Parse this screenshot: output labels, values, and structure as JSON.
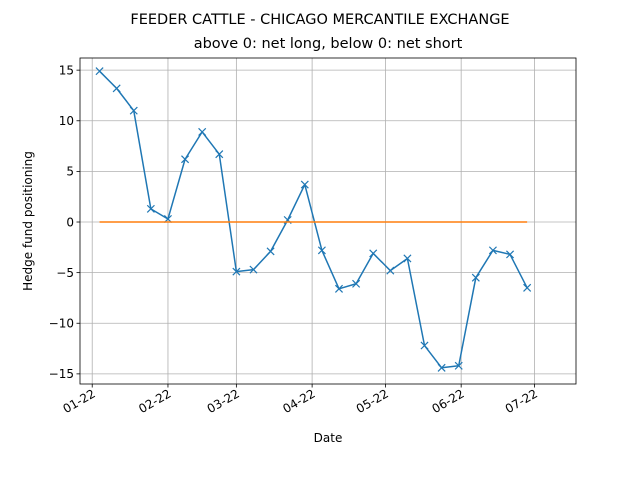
{
  "chart_data": {
    "type": "line",
    "suptitle": "FEEDER CATTLE - CHICAGO MERCANTILE EXCHANGE",
    "title": "above 0: net long, below 0: net short",
    "xlabel": "Date",
    "ylabel": "Hedge fund positioning",
    "ylim": [
      -16,
      16.2
    ],
    "xlim": [
      "2021-12-27",
      "2022-07-18"
    ],
    "yticks": [
      -15,
      -10,
      -5,
      0,
      5,
      10,
      15
    ],
    "xticks": [
      {
        "date": "2022-01-01",
        "label": "01-22"
      },
      {
        "date": "2022-02-01",
        "label": "02-22"
      },
      {
        "date": "2022-03-01",
        "label": "03-22"
      },
      {
        "date": "2022-04-01",
        "label": "04-22"
      },
      {
        "date": "2022-05-01",
        "label": "05-22"
      },
      {
        "date": "2022-06-01",
        "label": "06-22"
      },
      {
        "date": "2022-07-01",
        "label": "07-22"
      }
    ],
    "grid": true,
    "series": [
      {
        "color": "#1f77b4",
        "marker": "x",
        "x": [
          "2022-01-04",
          "2022-01-11",
          "2022-01-18",
          "2022-01-25",
          "2022-02-01",
          "2022-02-08",
          "2022-02-15",
          "2022-02-22",
          "2022-03-01",
          "2022-03-08",
          "2022-03-15",
          "2022-03-22",
          "2022-03-29",
          "2022-04-05",
          "2022-04-12",
          "2022-04-19",
          "2022-04-26",
          "2022-05-03",
          "2022-05-10",
          "2022-05-17",
          "2022-05-24",
          "2022-05-31",
          "2022-06-07",
          "2022-06-14",
          "2022-06-21",
          "2022-06-28"
        ],
        "values": [
          14.9,
          13.2,
          11.0,
          1.3,
          0.3,
          6.2,
          8.9,
          6.7,
          -4.9,
          -4.7,
          -2.9,
          0.2,
          3.7,
          -2.8,
          -6.6,
          -6.1,
          -3.1,
          -4.8,
          -3.6,
          -12.2,
          -14.4,
          -14.2,
          -5.5,
          -2.8,
          -3.2,
          -6.5
        ]
      },
      {
        "color": "#ff7f0e",
        "marker": "none",
        "x": [
          "2022-01-04",
          "2022-06-28"
        ],
        "values": [
          0,
          0
        ]
      }
    ]
  }
}
